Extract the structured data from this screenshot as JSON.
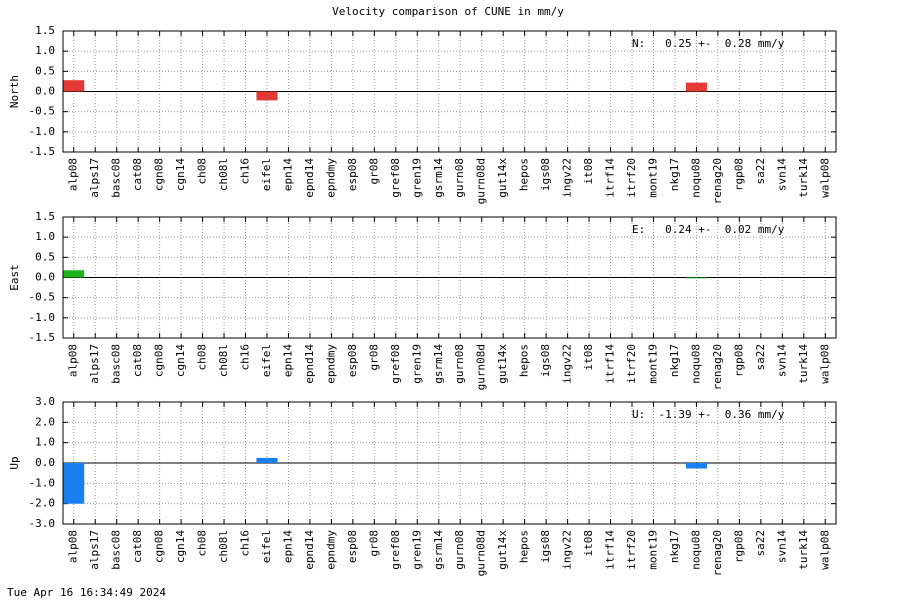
{
  "title": "Velocity comparison of CUNE in mm/y",
  "timestamp": "Tue Apr 16 16:34:49 2024",
  "chart_data": [
    {
      "type": "bar",
      "ylabel": "North",
      "annotation": "N:   0.25 +-  0.28 mm/y",
      "color": "#e53935",
      "categories": [
        "alp08",
        "alps17",
        "basc08",
        "cat08",
        "cgn08",
        "cgn14",
        "ch08",
        "ch08l",
        "ch16",
        "eifel",
        "epn14",
        "epnd14",
        "epndmy",
        "esp08",
        "gr08",
        "gref08",
        "gren19",
        "gsrm14",
        "gurn08",
        "gurn08d",
        "gut14x",
        "hepos",
        "igs08",
        "ingv22",
        "it08",
        "itrf14",
        "itrf20",
        "mont19",
        "nkg17",
        "noqu08",
        "renag20",
        "rgp08",
        "sa22",
        "svn14",
        "turk14",
        "walp08"
      ],
      "values": [
        0.28,
        0,
        0,
        0,
        0,
        0,
        0,
        0,
        0,
        -0.22,
        0,
        0,
        0,
        0,
        0,
        0,
        0,
        0,
        0,
        0,
        0,
        0,
        0,
        0,
        0,
        0,
        0,
        0,
        0,
        0.22,
        0,
        0,
        0,
        0,
        0,
        0
      ],
      "ylim": [
        -1.5,
        1.5
      ],
      "yticks": [
        {
          "value": -1.5,
          "label": "-1.5"
        },
        {
          "value": -1,
          "label": "-1.0"
        },
        {
          "value": -0.5,
          "label": "-0.5"
        },
        {
          "value": 0,
          "label": "0.0"
        },
        {
          "value": 0.5,
          "label": "0.5"
        },
        {
          "value": 1,
          "label": "1.0"
        },
        {
          "value": 1.5,
          "label": "1.5"
        }
      ],
      "grid": true
    },
    {
      "type": "bar",
      "ylabel": "East",
      "annotation": "E:   0.24 +-  0.02 mm/y",
      "color": "#1db31d",
      "categories": [
        "alp08",
        "alps17",
        "basc08",
        "cat08",
        "cgn08",
        "cgn14",
        "ch08",
        "ch08l",
        "ch16",
        "eifel",
        "epn14",
        "epnd14",
        "epndmy",
        "esp08",
        "gr08",
        "gref08",
        "gren19",
        "gsrm14",
        "gurn08",
        "gurn08d",
        "gut14x",
        "hepos",
        "igs08",
        "ingv22",
        "it08",
        "itrf14",
        "itrf20",
        "mont19",
        "nkg17",
        "noqu08",
        "renag20",
        "rgp08",
        "sa22",
        "svn14",
        "turk14",
        "walp08"
      ],
      "values": [
        0.18,
        0,
        0,
        0,
        0,
        0,
        0,
        0,
        0,
        0,
        0,
        0,
        0,
        0,
        0,
        0,
        0,
        0,
        0,
        0,
        0,
        0,
        0,
        0,
        0,
        0,
        0,
        0,
        0,
        -0.02,
        0,
        0,
        0,
        0,
        0,
        0
      ],
      "ylim": [
        -1.5,
        1.5
      ],
      "yticks": [
        {
          "value": -1.5,
          "label": "-1.5"
        },
        {
          "value": -1,
          "label": "-1.0"
        },
        {
          "value": -0.5,
          "label": "-0.5"
        },
        {
          "value": 0,
          "label": "0.0"
        },
        {
          "value": 0.5,
          "label": "0.5"
        },
        {
          "value": 1,
          "label": "1.0"
        },
        {
          "value": 1.5,
          "label": "1.5"
        }
      ],
      "grid": true
    },
    {
      "type": "bar",
      "ylabel": "Up",
      "annotation": "U:  -1.39 +-  0.36 mm/y",
      "color": "#1a7ff0",
      "categories": [
        "alp08",
        "alps17",
        "basc08",
        "cat08",
        "cgn08",
        "cgn14",
        "ch08",
        "ch08l",
        "ch16",
        "eifel",
        "epn14",
        "epnd14",
        "epndmy",
        "esp08",
        "gr08",
        "gref08",
        "gren19",
        "gsrm14",
        "gurn08",
        "gurn08d",
        "gut14x",
        "hepos",
        "igs08",
        "ingv22",
        "it08",
        "itrf14",
        "itrf20",
        "mont19",
        "nkg17",
        "noqu08",
        "renag20",
        "rgp08",
        "sa22",
        "svn14",
        "turk14",
        "walp08"
      ],
      "values": [
        -2.0,
        0,
        0,
        0,
        0,
        0,
        0,
        0,
        0,
        0.25,
        0,
        0,
        0,
        0,
        0,
        0,
        0,
        0,
        0,
        0,
        0,
        0,
        0,
        0,
        0,
        0,
        0,
        0,
        0,
        -0.27,
        0,
        0,
        0,
        0,
        0,
        0
      ],
      "ylim": [
        -3,
        3
      ],
      "yticks": [
        {
          "value": -3,
          "label": "-3.0"
        },
        {
          "value": -2,
          "label": "-2.0"
        },
        {
          "value": -1,
          "label": "-1.0"
        },
        {
          "value": 0,
          "label": "0.0"
        },
        {
          "value": 1,
          "label": "1.0"
        },
        {
          "value": 2,
          "label": "2.0"
        },
        {
          "value": 3,
          "label": "3.0"
        }
      ],
      "grid": true
    }
  ]
}
